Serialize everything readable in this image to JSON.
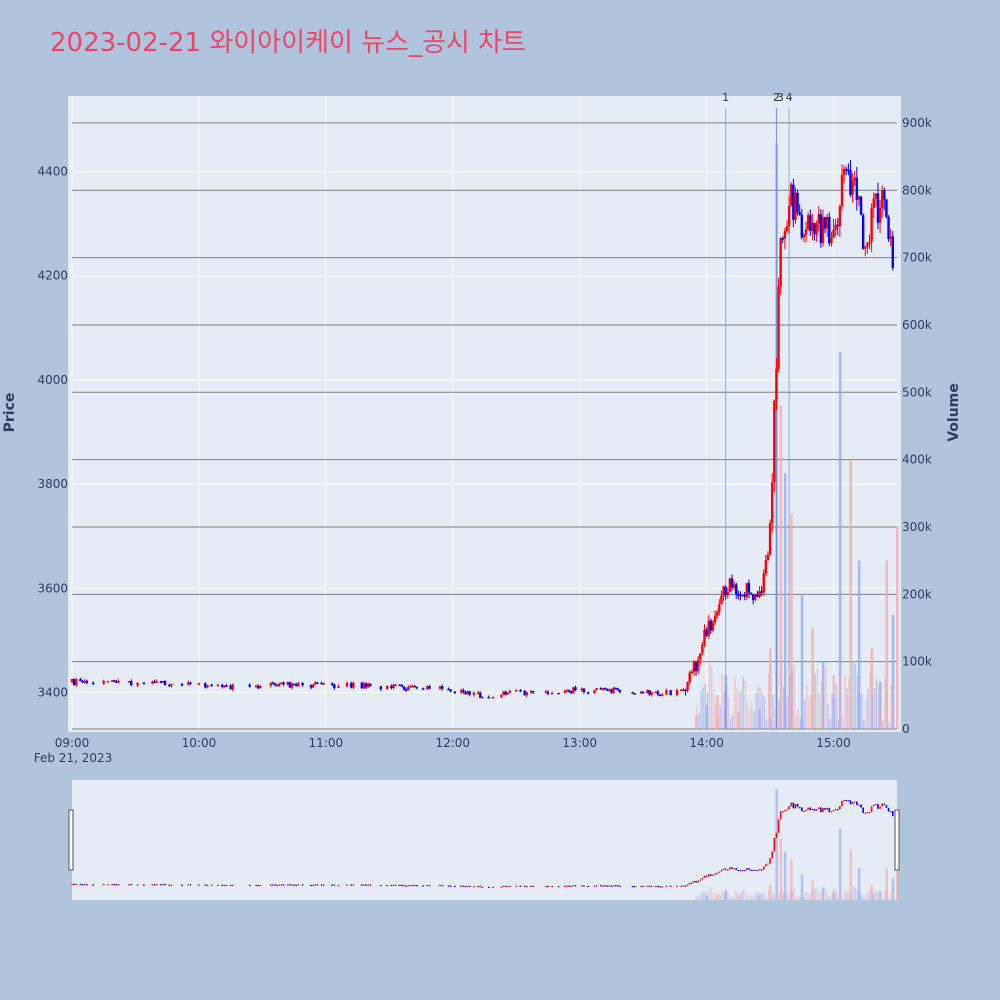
{
  "title": "2023-02-21 와이아이케이 뉴스_공시 차트",
  "colors": {
    "page_bg": "#b0c4de",
    "plot_bg": "#e5ecf6",
    "title": "#ee4466",
    "up": "#ff0000",
    "down": "#0000ff",
    "grid": "#ffffff",
    "volume_grid": "#808080",
    "news_line": "#6a8ee8"
  },
  "chart_data": {
    "type": "candlestick",
    "x_range": [
      "09:00",
      "15:30"
    ],
    "x_tick_labels": [
      "09:00",
      "10:00",
      "11:00",
      "12:00",
      "13:00",
      "14:00",
      "15:00"
    ],
    "x_date_label": "Feb 21, 2023",
    "price_axis": {
      "title": "Price",
      "range": [
        3330,
        4545
      ],
      "ticks": [
        3400,
        3600,
        3800,
        4000,
        4200,
        4400
      ]
    },
    "volume_axis": {
      "title": "Volume",
      "range": [
        0,
        940000
      ],
      "ticks": [
        0,
        100000,
        200000,
        300000,
        400000,
        500000,
        600000,
        700000,
        800000,
        900000
      ],
      "tick_labels": [
        "0",
        "100k",
        "200k",
        "300k",
        "400k",
        "500k",
        "600k",
        "700k",
        "800k",
        "900k"
      ]
    },
    "news_markers": [
      {
        "label": "1",
        "time": "14:09"
      },
      {
        "label": "2",
        "time": "14:33"
      },
      {
        "label": "3",
        "time": "14:33"
      },
      {
        "label": "4",
        "time": "14:39"
      }
    ],
    "price_path": [
      [
        "09:00",
        3420
      ],
      [
        "09:20",
        3418
      ],
      [
        "09:40",
        3420
      ],
      [
        "10:00",
        3415
      ],
      [
        "10:20",
        3410
      ],
      [
        "10:40",
        3415
      ],
      [
        "11:00",
        3415
      ],
      [
        "11:20",
        3412
      ],
      [
        "11:40",
        3410
      ],
      [
        "12:00",
        3405
      ],
      [
        "12:10",
        3395
      ],
      [
        "12:30",
        3400
      ],
      [
        "13:00",
        3405
      ],
      [
        "13:30",
        3402
      ],
      [
        "13:50",
        3400
      ],
      [
        "13:55",
        3455
      ],
      [
        "14:00",
        3520
      ],
      [
        "14:05",
        3550
      ],
      [
        "14:10",
        3610
      ],
      [
        "14:15",
        3600
      ],
      [
        "14:20",
        3590
      ],
      [
        "14:26",
        3585
      ],
      [
        "14:30",
        3700
      ],
      [
        "14:32",
        3950
      ],
      [
        "14:35",
        4250
      ],
      [
        "14:40",
        4350
      ],
      [
        "14:45",
        4300
      ],
      [
        "14:50",
        4280
      ],
      [
        "14:55",
        4300
      ],
      [
        "15:00",
        4270
      ],
      [
        "15:05",
        4420
      ],
      [
        "15:10",
        4360
      ],
      [
        "15:15",
        4260
      ],
      [
        "15:20",
        4330
      ],
      [
        "15:25",
        4330
      ],
      [
        "15:28",
        4230
      ]
    ],
    "volume_bars": [
      [
        "13:55",
        20000
      ],
      [
        "14:00",
        35000
      ],
      [
        "14:05",
        50000
      ],
      [
        "14:09",
        80000
      ],
      [
        "14:15",
        25000
      ],
      [
        "14:25",
        30000
      ],
      [
        "14:30",
        120000
      ],
      [
        "14:33",
        870000
      ],
      [
        "14:35",
        480000
      ],
      [
        "14:37",
        380000
      ],
      [
        "14:40",
        320000
      ],
      [
        "14:45",
        200000
      ],
      [
        "14:50",
        150000
      ],
      [
        "14:55",
        100000
      ],
      [
        "15:00",
        80000
      ],
      [
        "15:03",
        560000
      ],
      [
        "15:08",
        400000
      ],
      [
        "15:12",
        250000
      ],
      [
        "15:18",
        120000
      ],
      [
        "15:22",
        70000
      ],
      [
        "15:25",
        250000
      ],
      [
        "15:28",
        170000
      ],
      [
        "15:30",
        300000
      ]
    ]
  }
}
